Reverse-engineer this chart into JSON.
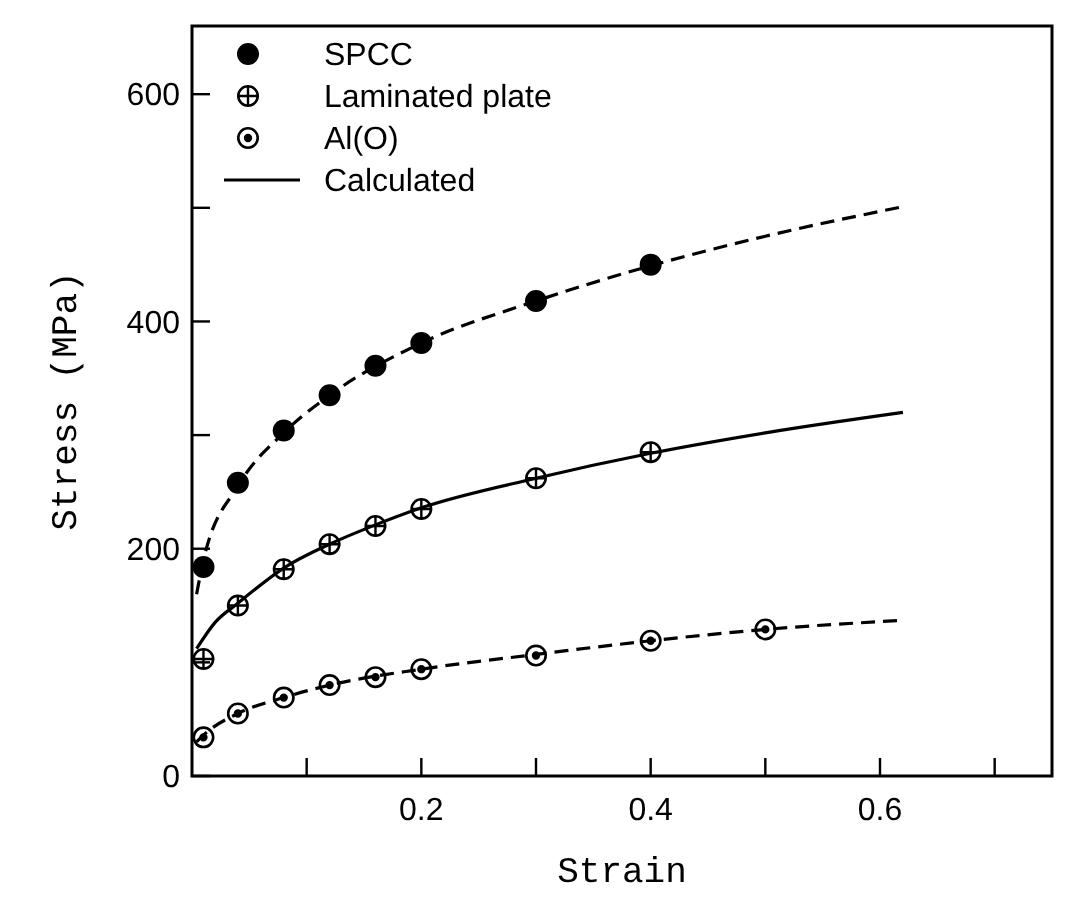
{
  "chart_data": {
    "type": "scatter",
    "xlabel": "Strain",
    "ylabel": "Stress (MPa)",
    "xlim": [
      0,
      0.75
    ],
    "ylim": [
      0,
      660
    ],
    "xticks": [
      {
        "value": 0.1,
        "label": null
      },
      0.2,
      {
        "value": 0.3,
        "label": null
      },
      0.4,
      {
        "value": 0.5,
        "label": null
      },
      0.6,
      {
        "value": 0.7,
        "label": null
      }
    ],
    "yticks": [
      0,
      {
        "value": 100,
        "label": null
      },
      200,
      {
        "value": 300,
        "label": null
      },
      400,
      {
        "value": 500,
        "label": null
      },
      600
    ],
    "legend": "top left",
    "grid": false,
    "series": [
      {
        "name": "SPCC",
        "color": "#000000",
        "marker": "circle",
        "x": [
          0.01,
          0.04,
          0.08,
          0.12,
          0.16,
          0.2,
          0.3,
          0.4
        ],
        "values": [
          184,
          258,
          304,
          335,
          361,
          381,
          418,
          450
        ]
      },
      {
        "name": "Laminated plate",
        "color": "#000000",
        "marker": "cross",
        "x": [
          0.01,
          0.04,
          0.08,
          0.12,
          0.16,
          0.2,
          0.3,
          0.4
        ],
        "values": [
          103,
          150,
          182,
          204,
          220,
          235,
          262,
          285
        ]
      },
      {
        "name": "Al(O)",
        "color": "#000000",
        "marker": "circle",
        "x": [
          0.01,
          0.04,
          0.08,
          0.12,
          0.16,
          0.2,
          0.3,
          0.4,
          0.5
        ],
        "values": [
          34,
          55,
          69,
          80,
          87,
          94,
          106,
          119,
          129
        ]
      },
      {
        "name": "Calculated",
        "color": "#000000",
        "type": "line",
        "marker": "none",
        "line_style": "solid",
        "x": [
          0.004,
          0.02,
          0.04,
          0.08,
          0.12,
          0.16,
          0.2,
          0.3,
          0.4,
          0.5,
          0.62
        ],
        "values": [
          112,
          135,
          152,
          183,
          204,
          221,
          236,
          262,
          284,
          302,
          320
        ]
      },
      {
        "color": "#000000",
        "type": "line",
        "marker": "none",
        "line_style": "dashed",
        "x": [
          0.004,
          0.01,
          0.04,
          0.08,
          0.12,
          0.2,
          0.3,
          0.4,
          0.5,
          0.62
        ],
        "values": [
          160,
          190,
          255,
          302,
          335,
          381,
          418,
          449,
          475,
          501
        ]
      },
      {
        "color": "#000000",
        "type": "line",
        "marker": "none",
        "line_style": "dashed",
        "x": [
          0.004,
          0.01,
          0.04,
          0.08,
          0.12,
          0.2,
          0.3,
          0.4,
          0.5,
          0.62
        ],
        "values": [
          30,
          36,
          55,
          69,
          80,
          94,
          107,
          119,
          129,
          137
        ]
      }
    ]
  }
}
